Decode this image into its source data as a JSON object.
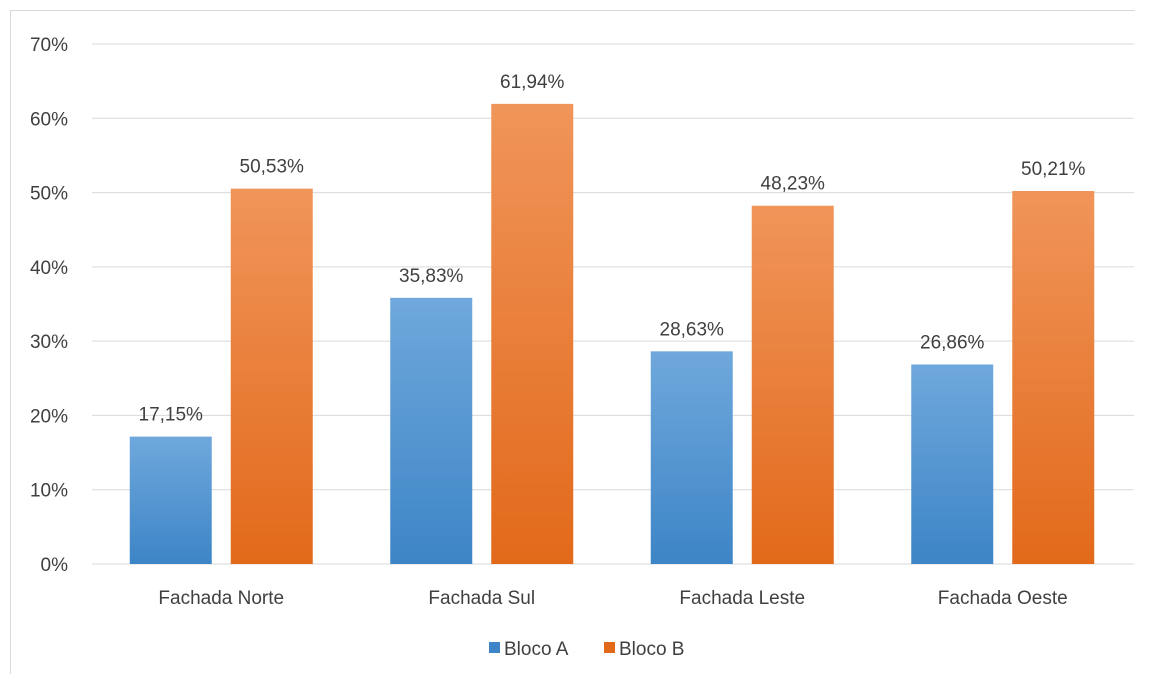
{
  "chart_data": {
    "type": "bar",
    "categories": [
      "Fachada Norte",
      "Fachada Sul",
      "Fachada Leste",
      "Fachada Oeste"
    ],
    "series": [
      {
        "name": "Bloco A",
        "values": [
          17.15,
          35.83,
          28.63,
          26.86
        ],
        "labels": [
          "17,15%",
          "35,83%",
          "28,63%",
          "26,86%"
        ]
      },
      {
        "name": "Bloco B",
        "values": [
          50.53,
          61.94,
          48.23,
          50.21
        ],
        "labels": [
          "50,53%",
          "61,94%",
          "48,23%",
          "50,21%"
        ]
      }
    ],
    "yticks": [
      "0%",
      "10%",
      "20%",
      "30%",
      "40%",
      "50%",
      "60%",
      "70%"
    ],
    "ylim": [
      0,
      70
    ],
    "grid": true,
    "legend_position": "bottom",
    "title": "",
    "xlabel": "",
    "ylabel": ""
  },
  "colors": {
    "bloco_a_top": "#6fa8dc",
    "bloco_a_bottom": "#3d85c6",
    "bloco_b_top": "#f0955a",
    "bloco_b_bottom": "#e2691a",
    "grid": "#d9d9d9",
    "text": "#404040"
  }
}
